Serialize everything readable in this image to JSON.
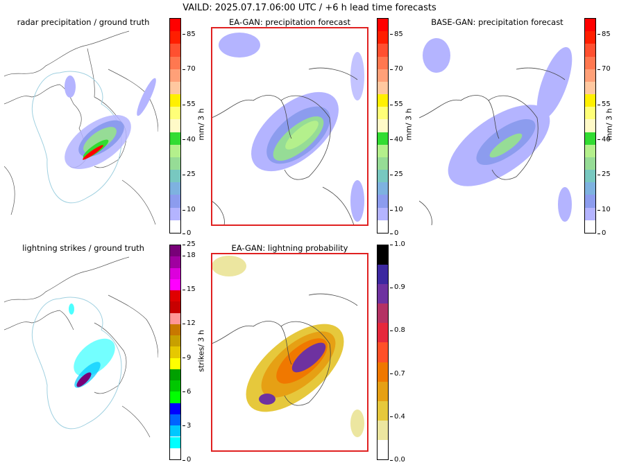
{
  "suptitle": "VAILD: 2025.07.17.06:00 UTC / +6 h lead time forecasts",
  "panels": {
    "radar": {
      "title": "radar precipitation / ground truth"
    },
    "ea_precip": {
      "title": "EA-GAN: precipitation forecast"
    },
    "base_precip": {
      "title": "BASE-GAN: precipitation forecast"
    },
    "lightning": {
      "title": "lightning strikes / ground truth"
    },
    "ea_lightning": {
      "title": "EA-GAN: lightning probability"
    }
  },
  "colorbars": {
    "precip": {
      "label": "mm/ 3 h",
      "ticks": [
        "0",
        "10",
        "25",
        "40",
        "55",
        "70",
        "85"
      ],
      "tick_values": [
        0,
        10,
        25,
        40,
        55,
        70,
        85
      ],
      "range": [
        0,
        92
      ],
      "colors": [
        "#ffffff",
        "#b4b4ff",
        "#8c9cee",
        "#7eb2e0",
        "#78c8c0",
        "#96dc96",
        "#b4f08c",
        "#32dc32",
        "#fffac8",
        "#ffff78",
        "#fff000",
        "#ffc8a0",
        "#ffa078",
        "#ff7850",
        "#ff5030",
        "#ff1e00",
        "#ff0000"
      ]
    },
    "lightning": {
      "label": "strikes/ 3 h",
      "ticks": [
        "0",
        "3",
        "6",
        "9",
        "12",
        "15",
        "18",
        "25"
      ],
      "colors": [
        "#ffffff",
        "#00ffff",
        "#00c8ff",
        "#0064ff",
        "#0000ff",
        "#00ff00",
        "#00c800",
        "#00a000",
        "#ffff00",
        "#e6c800",
        "#c8a000",
        "#c87800",
        "#ff9696",
        "#c80000",
        "#e00000",
        "#ff00ff",
        "#dc00dc",
        "#a000a0",
        "#780078"
      ]
    },
    "probability": {
      "ticks": [
        "0.0",
        "0.4",
        "0.7",
        "0.8",
        "0.9",
        "1.0"
      ],
      "colors": [
        "#ffffff",
        "#ece6a0",
        "#e6c83c",
        "#e6a014",
        "#f07800",
        "#ff5028",
        "#e6283c",
        "#b43264",
        "#6e32a0",
        "#3c28a0",
        "#000000"
      ]
    }
  }
}
